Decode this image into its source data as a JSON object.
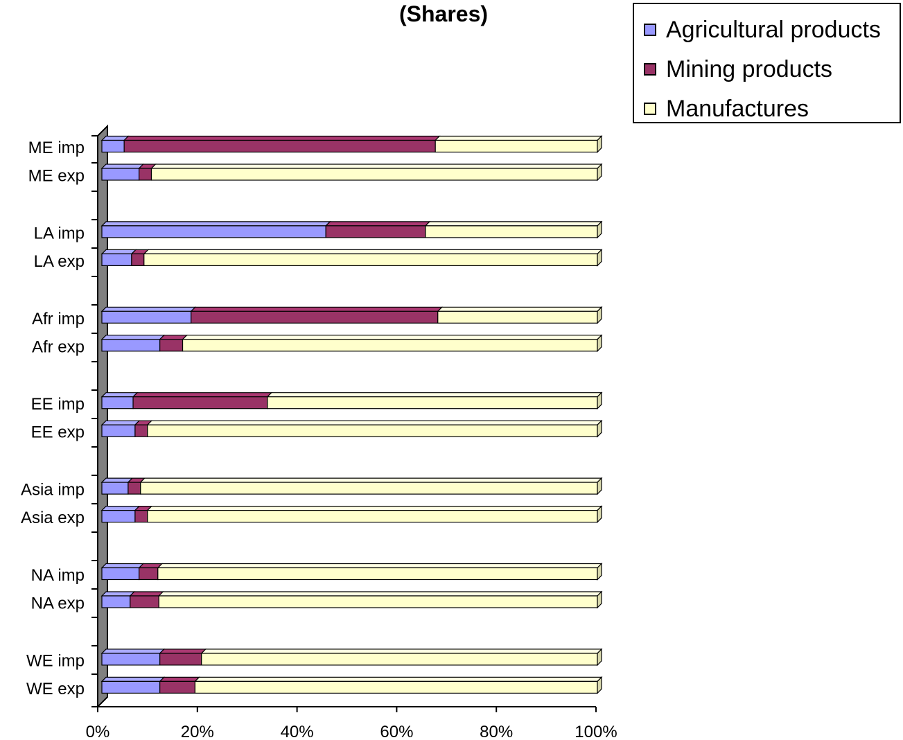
{
  "chart_data": {
    "type": "bar",
    "orientation": "horizontal",
    "stacked": "percent",
    "title": "(Shares)",
    "xlabel": "",
    "ylabel": "",
    "xlim": [
      0,
      100
    ],
    "x_ticks": [
      "0%",
      "20%",
      "40%",
      "60%",
      "80%",
      "100%"
    ],
    "legend_position": "top-right",
    "grid": false,
    "categories": [
      "ME imp",
      "ME exp",
      "LA imp",
      "LA exp",
      "Afr imp",
      "Afr exp",
      "EE imp",
      "EE exp",
      "Asia imp",
      "Asia exp",
      "NA imp",
      "NA exp",
      "WE imp",
      "WE exp"
    ],
    "series": [
      {
        "name": "Agricultural products",
        "color": "#9999ff",
        "values": [
          4.5,
          7.5,
          45.2,
          6.0,
          18.0,
          11.7,
          6.3,
          6.7,
          5.3,
          6.7,
          7.5,
          5.7,
          11.7,
          11.7
        ]
      },
      {
        "name": "Mining products",
        "color": "#993366",
        "values": [
          62.8,
          2.5,
          20.1,
          2.5,
          49.8,
          4.6,
          27.1,
          2.5,
          2.5,
          2.5,
          3.8,
          5.8,
          8.4,
          7.1
        ]
      },
      {
        "name": "Manufactures",
        "color": "#ffffcc",
        "values": [
          32.7,
          90.0,
          34.7,
          91.5,
          32.2,
          83.7,
          66.6,
          90.8,
          92.2,
          90.8,
          88.7,
          88.5,
          79.9,
          81.2
        ]
      }
    ]
  }
}
